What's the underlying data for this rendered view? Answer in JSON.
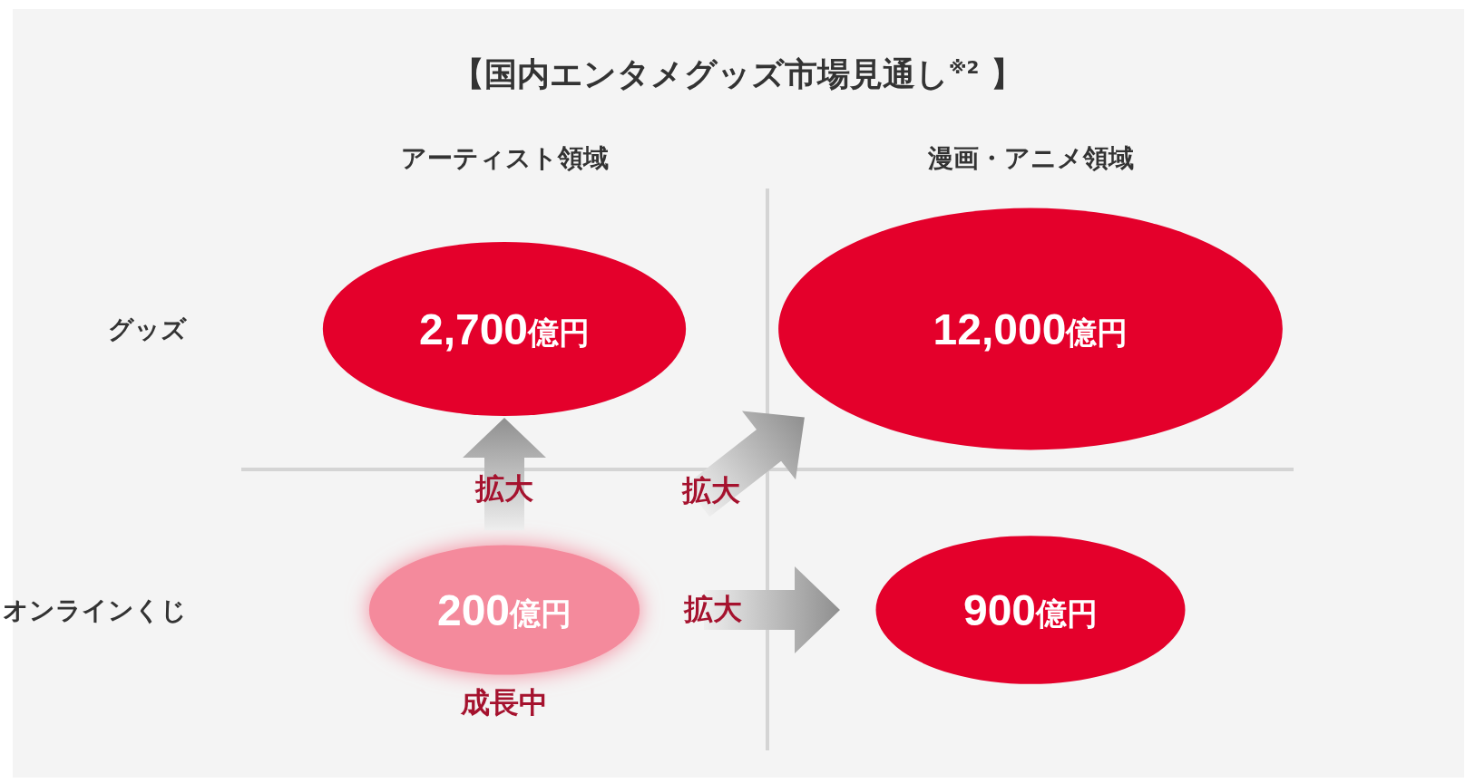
{
  "chart_data": {
    "type": "other",
    "title": "【国内エンタメグッズ市場見通し$^{※2}$ 】",
    "categories": [
      "アーティスト領域",
      "漫画・アニメ領域"
    ],
    "y_categories": [
      "グッズ",
      "オンラインくじ"
    ],
    "series": [
      {
        "values": [
          2700,
          12000
        ],
        "value_labels": [
          "2,700億円",
          "12,000億円"
        ],
        "colors": [
          "#e4002b",
          "#e4002b"
        ]
      },
      {
        "values": [
          200,
          900
        ],
        "value_labels": [
          "200億円",
          "900億円"
        ],
        "colors": [
          "#f48a9c",
          "#e4002b"
        ]
      }
    ],
    "annotations": [
      "拡大",
      "拡大",
      "拡大",
      "成長中"
    ]
  }
}
